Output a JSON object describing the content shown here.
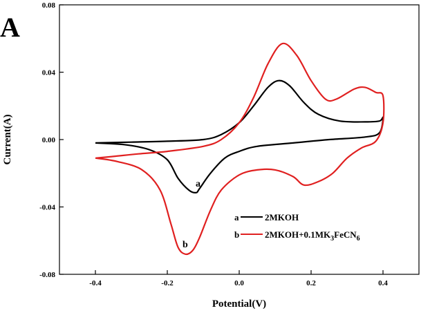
{
  "panel_letter": "A",
  "chart_data": {
    "type": "line",
    "title": "",
    "xlabel": "Potential(V)",
    "ylabel": "Current(A)",
    "xlim": [
      -0.5,
      0.5
    ],
    "ylim": [
      -0.08,
      0.08
    ],
    "xticks": [
      "-0.4",
      "-0.2",
      "0.0",
      "0.2",
      "0.4"
    ],
    "yticks": [
      "-0.08",
      "-0.04",
      "0.00",
      "0.04",
      "0.08"
    ],
    "legend_position": "bottom-right",
    "series": [
      {
        "name": "2MKOH",
        "label": "a",
        "legend_key": "a",
        "color": "#000000",
        "points": [
          [
            -0.4,
            -0.002
          ],
          [
            -0.3,
            -0.0015
          ],
          [
            -0.2,
            -0.001
          ],
          [
            -0.1,
            0.0
          ],
          [
            -0.05,
            0.003
          ],
          [
            0.0,
            0.01
          ],
          [
            0.04,
            0.02
          ],
          [
            0.08,
            0.031
          ],
          [
            0.11,
            0.035
          ],
          [
            0.14,
            0.032
          ],
          [
            0.18,
            0.022
          ],
          [
            0.22,
            0.015
          ],
          [
            0.28,
            0.011
          ],
          [
            0.35,
            0.0105
          ],
          [
            0.39,
            0.011
          ],
          [
            0.4,
            0.013
          ],
          [
            0.39,
            0.004
          ],
          [
            0.35,
            0.0015
          ],
          [
            0.25,
            0.0
          ],
          [
            0.15,
            -0.002
          ],
          [
            0.05,
            -0.004
          ],
          [
            0.0,
            -0.007
          ],
          [
            -0.04,
            -0.011
          ],
          [
            -0.08,
            -0.02
          ],
          [
            -0.11,
            -0.029
          ],
          [
            -0.12,
            -0.0315
          ],
          [
            -0.14,
            -0.03
          ],
          [
            -0.17,
            -0.023
          ],
          [
            -0.2,
            -0.012
          ],
          [
            -0.25,
            -0.006
          ],
          [
            -0.32,
            -0.003
          ],
          [
            -0.4,
            -0.002
          ]
        ]
      },
      {
        "name": "2MKOH+0.1MK3FeCN6",
        "legend_text": "2MKOH+0.1MK",
        "legend_sub1": "3",
        "legend_mid": "FeCN",
        "legend_sub2": "6",
        "label": "b",
        "legend_key": "b",
        "color": "#e02020",
        "points": [
          [
            -0.4,
            -0.011
          ],
          [
            -0.35,
            -0.01
          ],
          [
            -0.28,
            -0.0085
          ],
          [
            -0.2,
            -0.007
          ],
          [
            -0.1,
            -0.004
          ],
          [
            -0.05,
            0.0
          ],
          [
            0.0,
            0.01
          ],
          [
            0.04,
            0.025
          ],
          [
            0.08,
            0.045
          ],
          [
            0.12,
            0.057
          ],
          [
            0.16,
            0.05
          ],
          [
            0.2,
            0.035
          ],
          [
            0.24,
            0.024
          ],
          [
            0.27,
            0.024
          ],
          [
            0.32,
            0.03
          ],
          [
            0.35,
            0.031
          ],
          [
            0.38,
            0.028
          ],
          [
            0.4,
            0.026
          ],
          [
            0.4,
            0.01
          ],
          [
            0.38,
            -0.001
          ],
          [
            0.34,
            -0.005
          ],
          [
            0.3,
            -0.011
          ],
          [
            0.26,
            -0.02
          ],
          [
            0.22,
            -0.025
          ],
          [
            0.18,
            -0.027
          ],
          [
            0.15,
            -0.022
          ],
          [
            0.1,
            -0.018
          ],
          [
            0.05,
            -0.018
          ],
          [
            0.0,
            -0.021
          ],
          [
            -0.05,
            -0.03
          ],
          [
            -0.08,
            -0.042
          ],
          [
            -0.11,
            -0.058
          ],
          [
            -0.13,
            -0.066
          ],
          [
            -0.15,
            -0.068
          ],
          [
            -0.17,
            -0.064
          ],
          [
            -0.19,
            -0.05
          ],
          [
            -0.22,
            -0.03
          ],
          [
            -0.27,
            -0.018
          ],
          [
            -0.34,
            -0.013
          ],
          [
            -0.4,
            -0.011
          ]
        ]
      }
    ]
  }
}
